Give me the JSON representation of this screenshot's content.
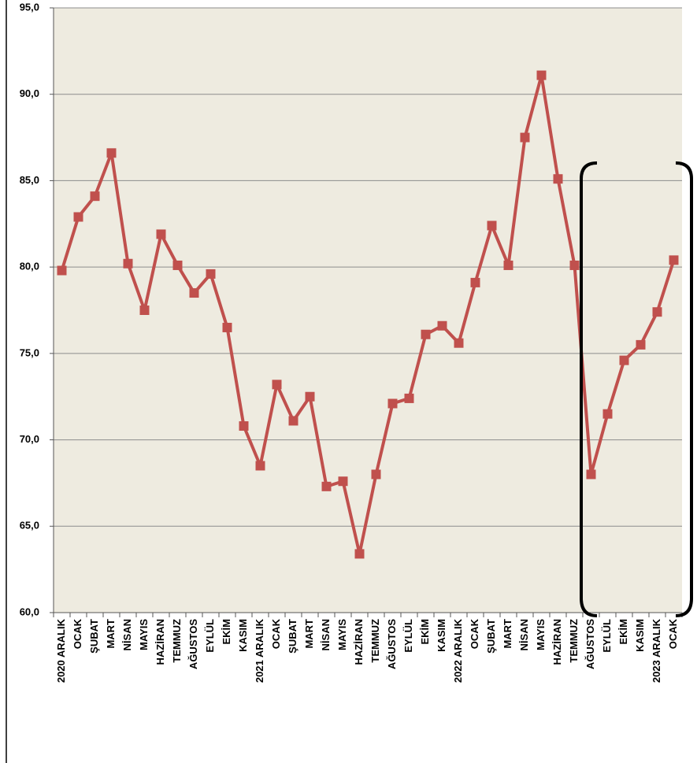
{
  "chart_data": {
    "type": "line",
    "categories": [
      "2020 ARALIK",
      "OCAK",
      "ŞUBAT",
      "MART",
      "NİSAN",
      "MAYIS",
      "HAZİRAN",
      "TEMMUZ",
      "AĞUSTOS",
      "EYLÜL",
      "EKİM",
      "KASIM",
      "2021 ARALIK",
      "OCAK",
      "ŞUBAT",
      "MART",
      "NİSAN",
      "MAYIS",
      "HAZİRAN",
      "TEMMUZ",
      "AĞUSTOS",
      "EYLÜL",
      "EKİM",
      "KASIM",
      "2022 ARALIK",
      "OCAK",
      "ŞUBAT",
      "MART",
      "NİSAN",
      "MAYIS",
      "HAZİRAN",
      "TEMMUZ",
      "AĞUSTOS",
      "EYLÜL",
      "EKİM",
      "KASIM",
      "2023 ARALIK",
      "OCAK"
    ],
    "values": [
      79.8,
      82.9,
      84.1,
      86.6,
      80.2,
      77.5,
      81.9,
      80.1,
      78.5,
      79.6,
      76.5,
      70.8,
      68.5,
      73.2,
      71.1,
      72.5,
      67.3,
      67.6,
      63.4,
      68.0,
      72.1,
      72.4,
      76.1,
      76.6,
      75.6,
      79.1,
      82.4,
      80.1,
      87.5,
      91.1,
      85.1,
      80.1,
      68.0,
      71.5,
      74.6,
      75.5,
      77.4,
      80.4
    ],
    "color": "#c0504d",
    "ylim": [
      60,
      95
    ],
    "yticks": [
      {
        "value": 60,
        "label": "60,0"
      },
      {
        "value": 65,
        "label": "65,0"
      },
      {
        "value": 70,
        "label": "70,0"
      },
      {
        "value": 75,
        "label": "75,0"
      },
      {
        "value": 80,
        "label": "80,0"
      },
      {
        "value": 85,
        "label": "85,0"
      },
      {
        "value": 90,
        "label": "90,0"
      },
      {
        "value": 95,
        "label": "95,0"
      }
    ],
    "grid": true
  }
}
